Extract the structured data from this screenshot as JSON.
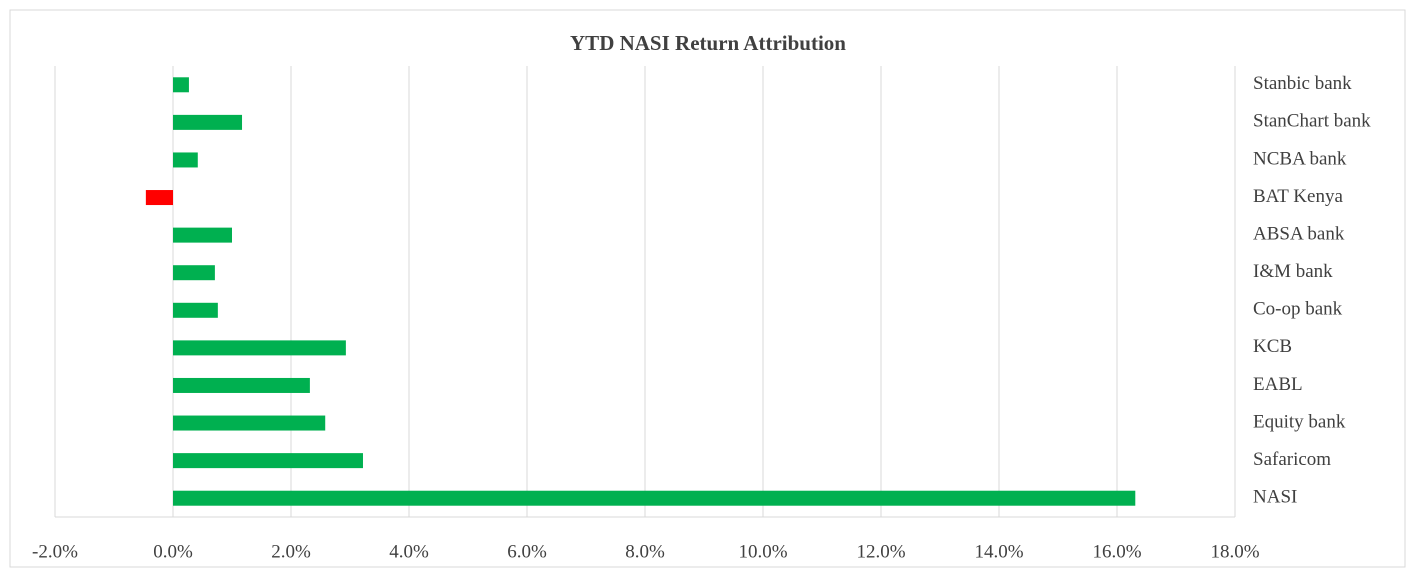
{
  "chart_data": {
    "type": "bar",
    "orientation": "horizontal",
    "title": "YTD NASI Return Attribution",
    "categories": [
      "Stanbic bank",
      "StanChart bank",
      "NCBA bank",
      "BAT Kenya",
      "ABSA bank",
      "I&M bank",
      "Co-op bank",
      "KCB",
      "EABL",
      "Equity bank",
      "Safaricom",
      "NASI"
    ],
    "values": [
      0.27,
      1.17,
      0.42,
      -0.46,
      1.0,
      0.71,
      0.76,
      2.93,
      2.32,
      2.58,
      3.22,
      16.31
    ],
    "colors": [
      "#00b050",
      "#00b050",
      "#00b050",
      "#ff0000",
      "#00b050",
      "#00b050",
      "#00b050",
      "#00b050",
      "#00b050",
      "#00b050",
      "#00b050",
      "#00b050"
    ],
    "xlim": [
      -2,
      18
    ],
    "xticks": [
      {
        "value": -2,
        "label": "-2.0%"
      },
      {
        "value": 0,
        "label": "0.0%"
      },
      {
        "value": 2,
        "label": "2.0%"
      },
      {
        "value": 4,
        "label": "4.0%"
      },
      {
        "value": 6,
        "label": "6.0%"
      },
      {
        "value": 8,
        "label": "8.0%"
      },
      {
        "value": 10,
        "label": "10.0%"
      },
      {
        "value": 12,
        "label": "12.0%"
      },
      {
        "value": 14,
        "label": "14.0%"
      },
      {
        "value": 16,
        "label": "16.0%"
      },
      {
        "value": 18,
        "label": "18.0%"
      }
    ],
    "grid": true
  }
}
